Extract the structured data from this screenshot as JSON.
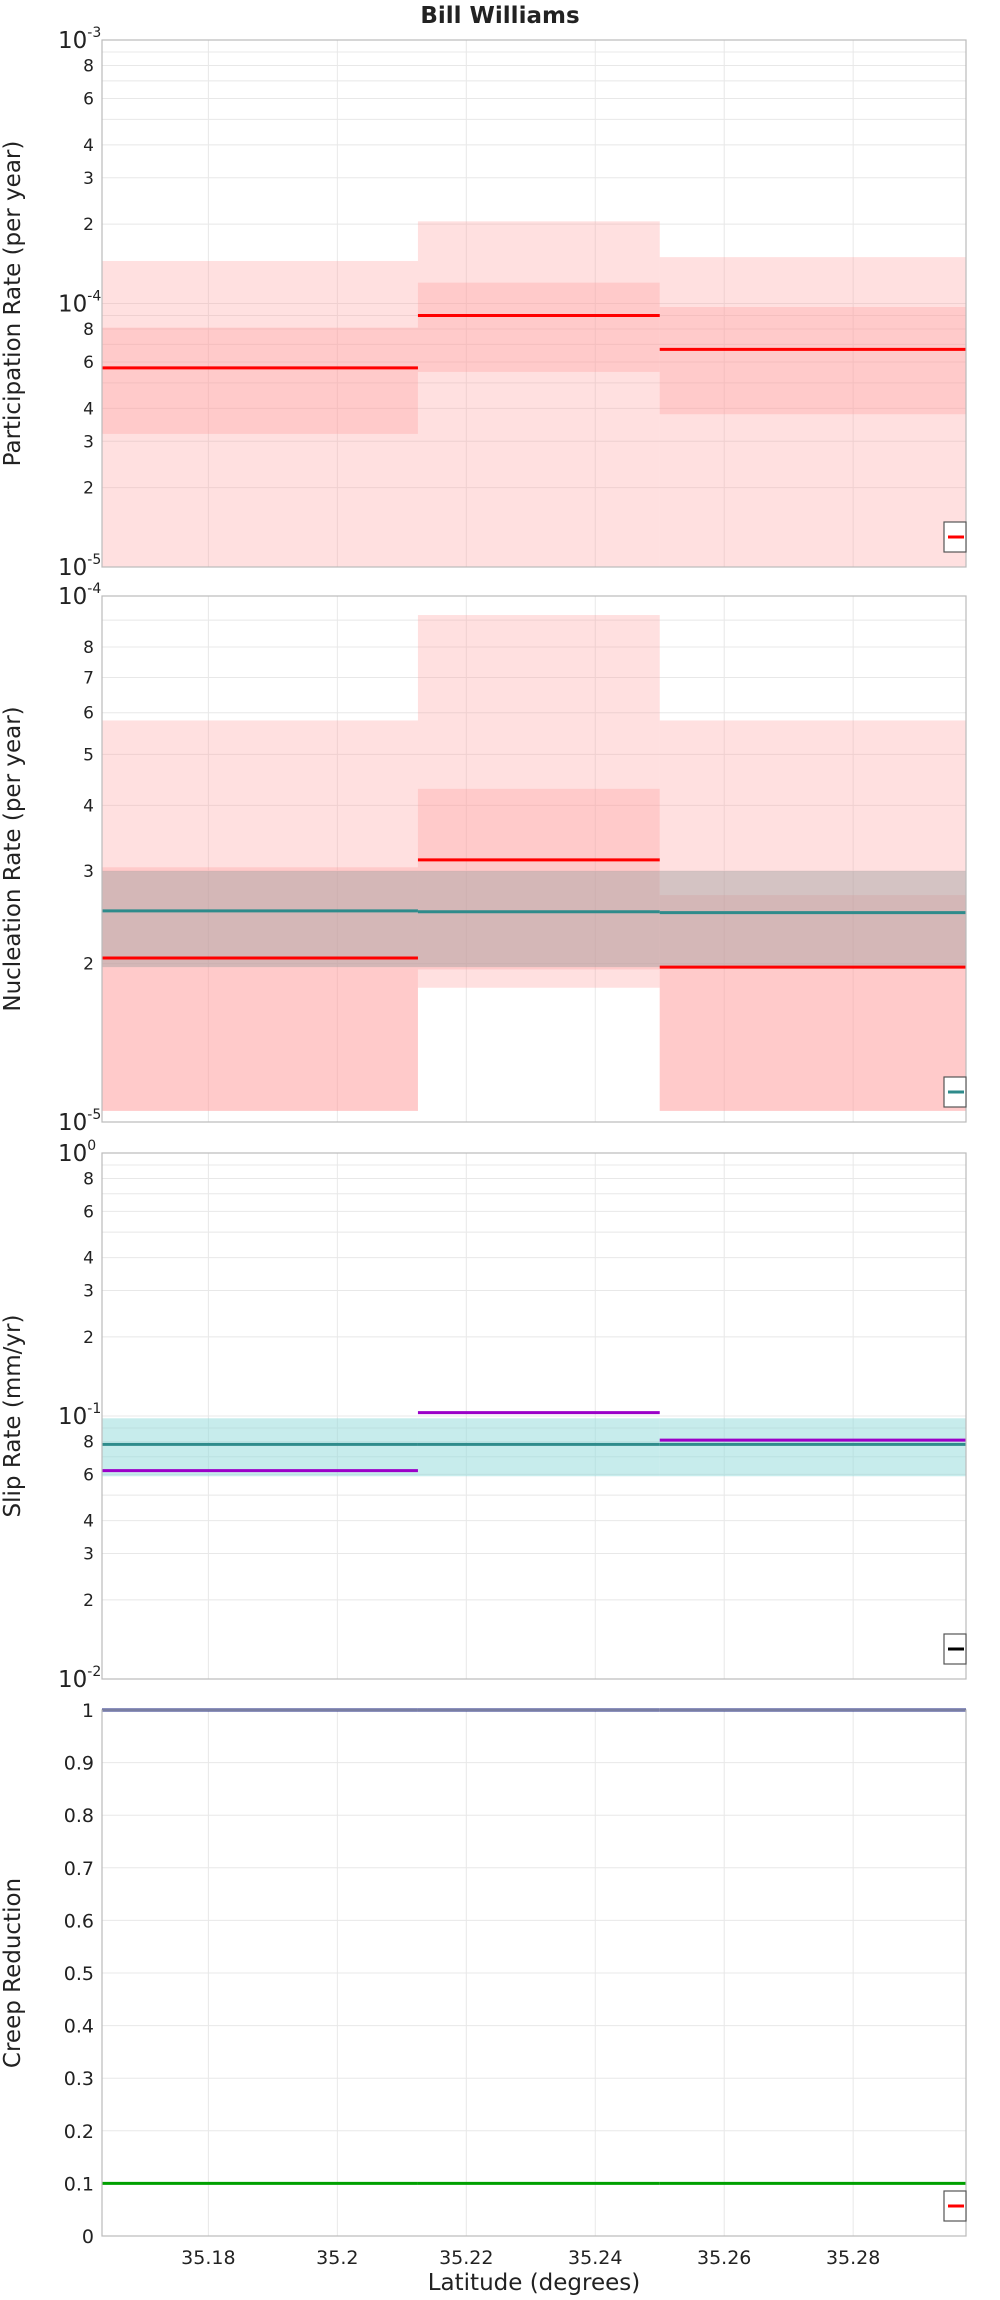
{
  "figure": {
    "title": "Bill Williams",
    "xlabel": "Latitude (degrees)"
  },
  "colors": {
    "red": "#ff0000",
    "red_band": "#ff9999",
    "gray_band": "#a0a0a0",
    "teal": "#2e8b8b",
    "cyan_band": "#8fdada",
    "purple": "#9b00c8",
    "navy": "#1a237e",
    "green": "#00a000",
    "grid": "#e8e8e8",
    "frame": "#bbbbbb"
  },
  "chart_data": [
    {
      "type": "line",
      "ylabel": "Participation Rate (per year)",
      "yscale": "log",
      "xlim": [
        35.1635,
        35.2975
      ],
      "ylim": [
        1e-05,
        0.001
      ],
      "x_ticks": [
        "35.18",
        "35.2",
        "35.22",
        "35.24",
        "35.26",
        "35.28"
      ],
      "y_decade_labels": [
        {
          "base": "10",
          "exp": "-5"
        },
        {
          "base": "10",
          "exp": "-4"
        },
        {
          "base": "10",
          "exp": "-3"
        }
      ],
      "y_minor_labels": [
        "2",
        "3",
        "4",
        "6",
        "8",
        "2",
        "3",
        "4",
        "6",
        "8"
      ],
      "segments": [
        [
          35.1635,
          35.2125
        ],
        [
          35.2125,
          35.25
        ],
        [
          35.25,
          35.2975
        ]
      ],
      "bands": [
        {
          "color": "red_band",
          "opacity": 0.3,
          "lower": [
            1e-05,
            1e-05,
            1e-05
          ],
          "upper": [
            0.000145,
            0.000205,
            0.00015
          ]
        },
        {
          "color": "red_band",
          "opacity": 0.3,
          "lower": [
            3.2e-05,
            5.5e-05,
            3.8e-05
          ],
          "upper": [
            8.1e-05,
            0.00012,
            9.7e-05
          ]
        }
      ],
      "series": [
        {
          "color": "red",
          "values": [
            5.7e-05,
            9e-05,
            6.7e-05
          ]
        }
      ]
    },
    {
      "type": "line",
      "ylabel": "Nucleation Rate (per year)",
      "yscale": "log",
      "xlim": [
        35.1635,
        35.2975
      ],
      "ylim": [
        1e-05,
        0.0001
      ],
      "x_ticks": [
        "35.18",
        "35.2",
        "35.22",
        "35.24",
        "35.26",
        "35.28"
      ],
      "y_decade_labels": [
        {
          "base": "10",
          "exp": "-5"
        },
        {
          "base": "10",
          "exp": "-4"
        }
      ],
      "y_minor_labels": [
        "2",
        "3",
        "4",
        "5",
        "6",
        "7",
        "8"
      ],
      "segments": [
        [
          35.1635,
          35.2125
        ],
        [
          35.2125,
          35.25
        ],
        [
          35.25,
          35.2975
        ]
      ],
      "bands": [
        {
          "color": "red_band",
          "opacity": 0.3,
          "lower": [
            1.05e-05,
            1.8e-05,
            1.05e-05
          ],
          "upper": [
            5.8e-05,
            9.2e-05,
            5.8e-05
          ]
        },
        {
          "color": "red_band",
          "opacity": 0.3,
          "lower": [
            1.05e-05,
            1.95e-05,
            1.05e-05
          ],
          "upper": [
            3.05e-05,
            4.3e-05,
            2.7e-05
          ]
        },
        {
          "color": "gray_band",
          "opacity": 0.45,
          "lower": [
            1.97e-05,
            1.97e-05,
            1.97e-05
          ],
          "upper": [
            3e-05,
            3e-05,
            3e-05
          ]
        }
      ],
      "series": [
        {
          "color": "teal",
          "values": [
            2.52e-05,
            2.51e-05,
            2.5e-05
          ]
        },
        {
          "color": "red",
          "values": [
            2.05e-05,
            3.15e-05,
            1.97e-05
          ]
        }
      ]
    },
    {
      "type": "line",
      "ylabel": "Slip Rate (mm/yr)",
      "yscale": "log",
      "xlim": [
        35.1635,
        35.2975
      ],
      "ylim": [
        0.01,
        1
      ],
      "x_ticks": [
        "35.18",
        "35.2",
        "35.22",
        "35.24",
        "35.26",
        "35.28"
      ],
      "y_decade_labels": [
        {
          "base": "10",
          "exp": "-2"
        },
        {
          "base": "10",
          "exp": "-1"
        },
        {
          "base": "10",
          "exp": "0"
        }
      ],
      "y_minor_labels": [
        "2",
        "3",
        "4",
        "6",
        "8",
        "2",
        "3",
        "4",
        "6",
        "8"
      ],
      "segments": [
        [
          35.1635,
          35.2125
        ],
        [
          35.2125,
          35.25
        ],
        [
          35.25,
          35.2975
        ]
      ],
      "bands": [
        {
          "color": "cyan_band",
          "opacity": 0.5,
          "lower": [
            0.059,
            0.059,
            0.059
          ],
          "upper": [
            0.098,
            0.098,
            0.098
          ]
        }
      ],
      "series": [
        {
          "color": "teal",
          "values": [
            0.078,
            0.078,
            0.078
          ]
        },
        {
          "color": "purple",
          "values": [
            0.062,
            0.103,
            0.081
          ]
        }
      ]
    },
    {
      "type": "line",
      "ylabel": "Creep Reduction",
      "yscale": "linear",
      "xlim": [
        35.1635,
        35.2975
      ],
      "ylim": [
        0,
        1
      ],
      "x_ticks": [
        "35.18",
        "35.2",
        "35.22",
        "35.24",
        "35.26",
        "35.28"
      ],
      "y_ticks": [
        "0",
        "0.1",
        "0.2",
        "0.3",
        "0.4",
        "0.5",
        "0.6",
        "0.7",
        "0.8",
        "0.9",
        "1"
      ],
      "segments": [
        [
          35.1635,
          35.2125
        ],
        [
          35.2125,
          35.25
        ],
        [
          35.25,
          35.2975
        ]
      ],
      "bands": [],
      "series": [
        {
          "color": "navy",
          "values": [
            1,
            1,
            1
          ]
        },
        {
          "color": "green",
          "values": [
            0.1,
            0.1,
            0.1
          ]
        }
      ]
    }
  ]
}
